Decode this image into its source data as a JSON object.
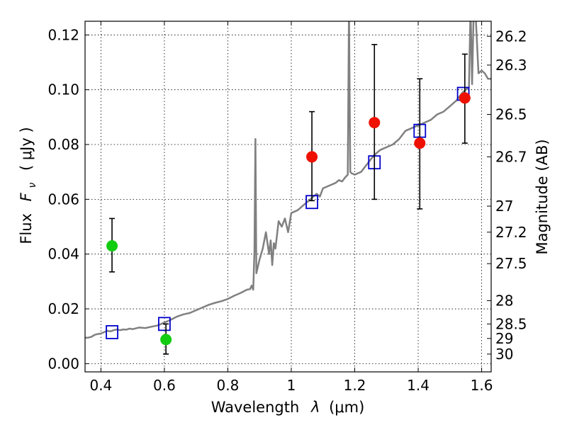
{
  "chart_data": {
    "type": "scatter",
    "xlabel_text": "Wavelength",
    "xlabel_symbol": "λ",
    "xlabel_unit": "(μm)",
    "ylabel_text": "Flux",
    "ylabel_symbol": "F",
    "ylabel_subscript": "ν",
    "ylabel_unit": "( μJy )",
    "y2label": "Magnitude (AB)",
    "xlim": [
      0.35,
      1.63
    ],
    "ylim": [
      -0.003,
      0.125
    ],
    "grid": true,
    "x_ticks": [
      {
        "value": 0.4,
        "label": "0.4"
      },
      {
        "value": 0.6,
        "label": "0.6"
      },
      {
        "value": 0.8,
        "label": "0.8"
      },
      {
        "value": 1.0,
        "label": "1"
      },
      {
        "value": 1.2,
        "label": "1.2"
      },
      {
        "value": 1.4,
        "label": "1.4"
      },
      {
        "value": 1.6,
        "label": "1.6"
      }
    ],
    "y_ticks": [
      {
        "value": 0.0,
        "label": "0.00"
      },
      {
        "value": 0.02,
        "label": "0.02"
      },
      {
        "value": 0.04,
        "label": "0.04"
      },
      {
        "value": 0.06,
        "label": "0.06"
      },
      {
        "value": 0.08,
        "label": "0.08"
      },
      {
        "value": 0.1,
        "label": "0.10"
      },
      {
        "value": 0.12,
        "label": "0.12"
      }
    ],
    "y2_ticks": [
      {
        "flux": 0.1195,
        "label": "26.2"
      },
      {
        "flux": 0.109,
        "label": "26.3"
      },
      {
        "flux": 0.091,
        "label": "26.5"
      },
      {
        "flux": 0.0755,
        "label": "26.7"
      },
      {
        "flux": 0.0575,
        "label": "27"
      },
      {
        "flux": 0.048,
        "label": "27.2"
      },
      {
        "flux": 0.0365,
        "label": "27.5"
      },
      {
        "flux": 0.023,
        "label": "28"
      },
      {
        "flux": 0.0145,
        "label": "28.5"
      },
      {
        "flux": 0.0092,
        "label": "29"
      },
      {
        "flux": 0.0035,
        "label": "30"
      }
    ],
    "series": [
      {
        "marker": "line",
        "color": "#808080",
        "x": [
          0.35,
          0.36,
          0.37,
          0.38,
          0.39,
          0.4,
          0.41,
          0.42,
          0.43,
          0.44,
          0.45,
          0.46,
          0.47,
          0.48,
          0.49,
          0.5,
          0.52,
          0.54,
          0.56,
          0.58,
          0.6,
          0.62,
          0.64,
          0.66,
          0.68,
          0.7,
          0.72,
          0.74,
          0.76,
          0.78,
          0.8,
          0.82,
          0.84,
          0.86,
          0.87,
          0.875,
          0.88,
          0.884,
          0.887,
          0.89,
          0.9,
          0.91,
          0.92,
          0.93,
          0.935,
          0.94,
          0.945,
          0.95,
          0.96,
          0.97,
          0.98,
          0.99,
          1.0,
          1.02,
          1.04,
          1.06,
          1.08,
          1.09,
          1.1,
          1.12,
          1.14,
          1.15,
          1.16,
          1.17,
          1.178,
          1.182,
          1.186,
          1.19,
          1.2,
          1.22,
          1.24,
          1.26,
          1.28,
          1.3,
          1.32,
          1.34,
          1.36,
          1.38,
          1.4,
          1.42,
          1.44,
          1.46,
          1.48,
          1.5,
          1.52,
          1.54,
          1.55,
          1.56,
          1.565,
          1.57,
          1.575,
          1.58,
          1.59,
          1.6,
          1.61,
          1.62,
          1.63
        ],
        "y": [
          0.0095,
          0.0095,
          0.0098,
          0.0105,
          0.0108,
          0.011,
          0.0115,
          0.012,
          0.0118,
          0.0122,
          0.0125,
          0.0122,
          0.0125,
          0.0124,
          0.0128,
          0.0126,
          0.0132,
          0.013,
          0.0135,
          0.014,
          0.015,
          0.016,
          0.0172,
          0.018,
          0.0185,
          0.0195,
          0.0205,
          0.0215,
          0.0222,
          0.0228,
          0.0236,
          0.0248,
          0.0258,
          0.027,
          0.0272,
          0.0285,
          0.027,
          0.041,
          0.082,
          0.033,
          0.038,
          0.042,
          0.048,
          0.04,
          0.045,
          0.036,
          0.044,
          0.042,
          0.052,
          0.05,
          0.053,
          0.048,
          0.055,
          0.056,
          0.058,
          0.06,
          0.062,
          0.061,
          0.064,
          0.065,
          0.066,
          0.067,
          0.0665,
          0.068,
          0.069,
          0.13,
          0.07,
          0.0695,
          0.069,
          0.07,
          0.073,
          0.076,
          0.078,
          0.079,
          0.08,
          0.082,
          0.085,
          0.086,
          0.087,
          0.088,
          0.089,
          0.091,
          0.092,
          0.094,
          0.096,
          0.099,
          0.1,
          0.101,
          0.13,
          0.102,
          0.13,
          0.13,
          0.106,
          0.107,
          0.106,
          0.104,
          0.104
        ]
      },
      {
        "marker": "square",
        "color": "#0000cc",
        "x": [
          0.435,
          0.6,
          1.065,
          1.262,
          1.405,
          1.542
        ],
        "y": [
          0.0115,
          0.0145,
          0.059,
          0.0735,
          0.085,
          0.0985
        ]
      },
      {
        "marker": "circle",
        "color": "#ee1100",
        "x": [
          1.065,
          1.262,
          1.405,
          1.547
        ],
        "y": [
          0.0755,
          0.088,
          0.0805,
          0.097
        ],
        "yerr_low": [
          0.0595,
          0.06,
          0.0565,
          0.0805
        ],
        "yerr_high": [
          0.092,
          0.1165,
          0.104,
          0.113
        ]
      },
      {
        "marker": "circle",
        "color": "#11cc11",
        "x": [
          0.435,
          0.605
        ],
        "y": [
          0.043,
          0.0088
        ],
        "yerr_low": [
          0.0335,
          0.0035
        ],
        "yerr_high": [
          0.053,
          0.0145
        ]
      }
    ]
  }
}
